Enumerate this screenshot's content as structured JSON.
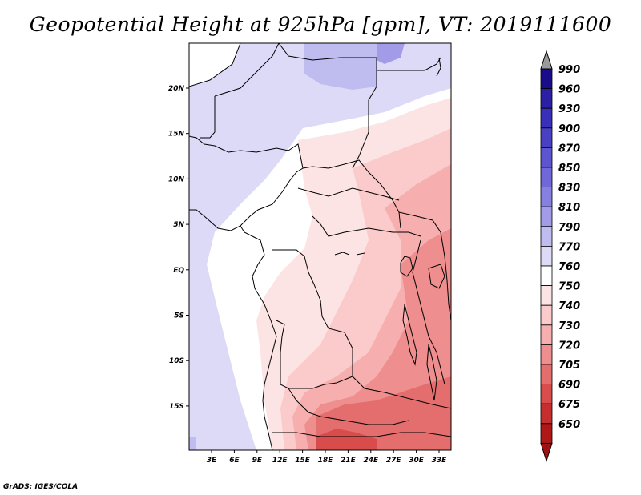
{
  "title": "Geopotential Height at 925hPa [gpm], VT: 2019111600",
  "credit": "GrADS: IGES/COLA",
  "map": {
    "lon_ticks": [
      "3E",
      "6E",
      "9E",
      "12E",
      "15E",
      "18E",
      "21E",
      "24E",
      "27E",
      "30E",
      "33E"
    ],
    "lat_ticks": [
      "20N",
      "15N",
      "10N",
      "5N",
      "EQ",
      "5S",
      "10S",
      "15S"
    ]
  },
  "colorbar": {
    "labels": [
      "990",
      "960",
      "930",
      "900",
      "870",
      "850",
      "830",
      "810",
      "790",
      "770",
      "760",
      "750",
      "740",
      "730",
      "720",
      "705",
      "690",
      "675",
      "650"
    ],
    "colors": [
      "#1a0d8c",
      "#2b1fa6",
      "#3a2fb8",
      "#4a40c4",
      "#5d55cf",
      "#7068d8",
      "#8680e0",
      "#a29ce8",
      "#bfbcf0",
      "#dcdaf7",
      "#ffffff",
      "#fde4e4",
      "#fbcaca",
      "#f6aeae",
      "#ee8e8e",
      "#e46d6d",
      "#d84c4c",
      "#c72f2f",
      "#b01818"
    ],
    "over_color": "#9a9a9a",
    "under_color": "#a01212"
  }
}
